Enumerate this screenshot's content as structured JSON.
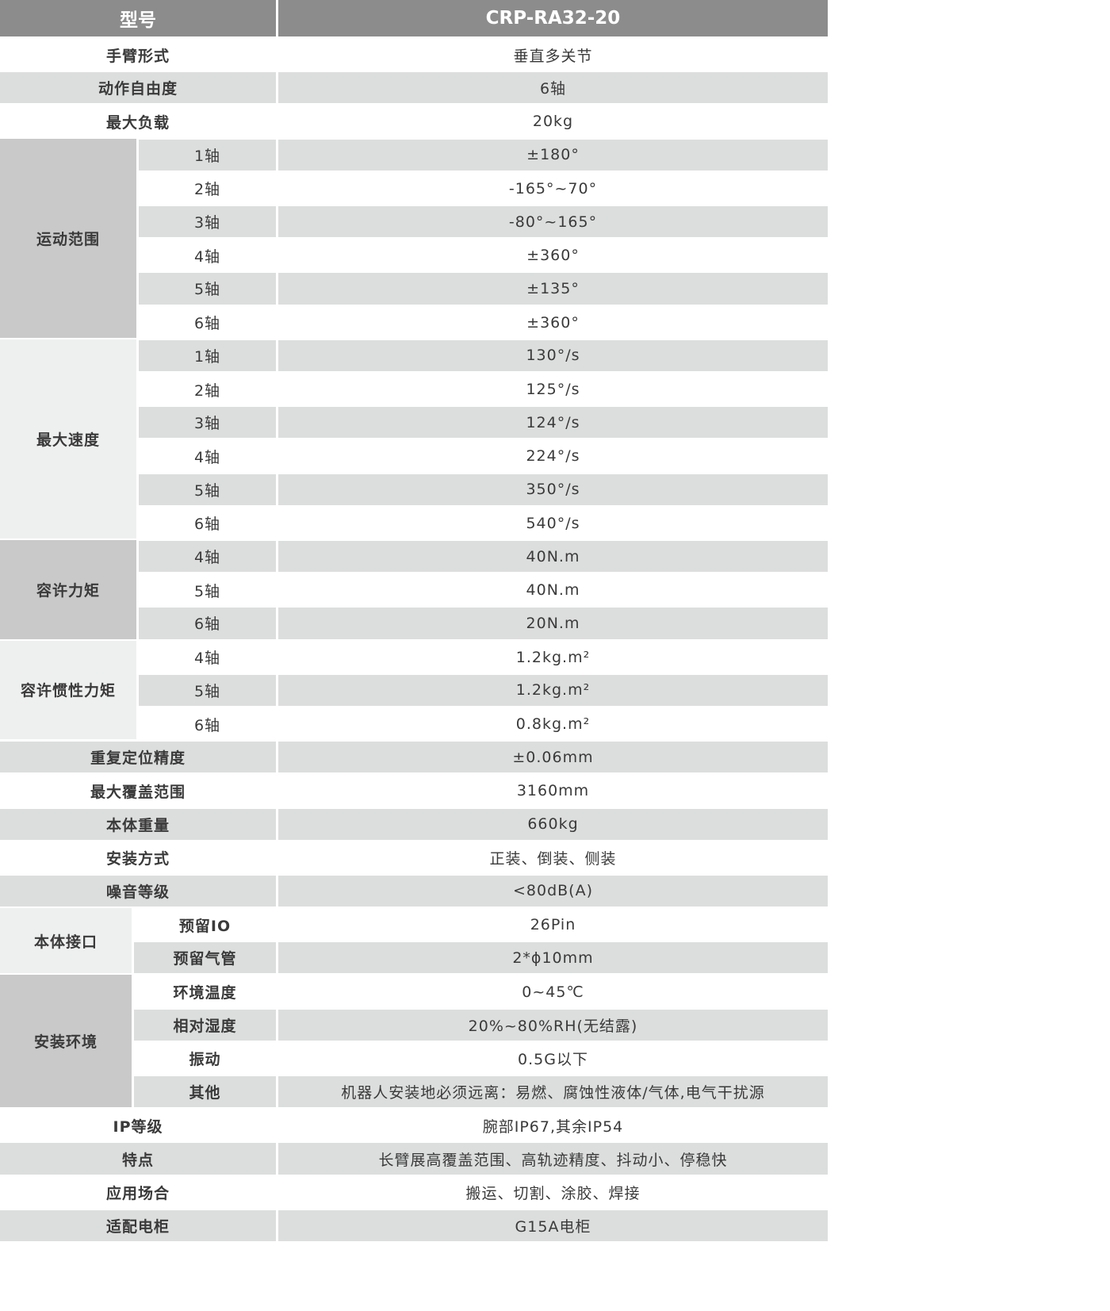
{
  "header": {
    "label": "型号",
    "model": "CRP-RA32-20"
  },
  "colors": {
    "header_bg": "#8c8c8c",
    "row_alt": "#dcdedd",
    "group_dark": "#c9c9c9",
    "group_light": "#eef0ef"
  },
  "blocks": [
    {
      "label": "手臂形式",
      "value": "垂直多关节"
    },
    {
      "label": "动作自由度",
      "value": "6轴"
    },
    {
      "label": "最大负载",
      "value": "20kg"
    },
    {
      "label": "运动范围",
      "tone": "dark",
      "narrow": false,
      "rows": [
        {
          "sub": "1轴",
          "value": "±180°"
        },
        {
          "sub": "2轴",
          "value": "-165°~70°"
        },
        {
          "sub": "3轴",
          "value": "-80°~165°"
        },
        {
          "sub": "4轴",
          "value": "±360°"
        },
        {
          "sub": "5轴",
          "value": "±135°"
        },
        {
          "sub": "6轴",
          "value": "±360°"
        }
      ]
    },
    {
      "label": "最大速度",
      "tone": "light",
      "narrow": false,
      "rows": [
        {
          "sub": "1轴",
          "value": "130°/s"
        },
        {
          "sub": "2轴",
          "value": "125°/s"
        },
        {
          "sub": "3轴",
          "value": "124°/s"
        },
        {
          "sub": "4轴",
          "value": "224°/s"
        },
        {
          "sub": "5轴",
          "value": "350°/s"
        },
        {
          "sub": "6轴",
          "value": "540°/s"
        }
      ]
    },
    {
      "label": "容许力矩",
      "tone": "dark",
      "narrow": false,
      "rows": [
        {
          "sub": "4轴",
          "value": "40N.m"
        },
        {
          "sub": "5轴",
          "value": "40N.m"
        },
        {
          "sub": "6轴",
          "value": "20N.m"
        }
      ]
    },
    {
      "label": "容许惯性力矩",
      "tone": "light",
      "narrow": false,
      "rows": [
        {
          "sub": "4轴",
          "value": "1.2kg.m²"
        },
        {
          "sub": "5轴",
          "value": "1.2kg.m²"
        },
        {
          "sub": "6轴",
          "value": "0.8kg.m²"
        }
      ]
    },
    {
      "label": "重复定位精度",
      "value": "±0.06mm"
    },
    {
      "label": "最大覆盖范围",
      "value": "3160mm"
    },
    {
      "label": "本体重量",
      "value": "660kg"
    },
    {
      "label": "安装方式",
      "value": "正装、倒装、侧装"
    },
    {
      "label": "噪音等级",
      "value": "<80dB(A)"
    },
    {
      "label": "本体接口",
      "tone": "light",
      "narrow": true,
      "rows": [
        {
          "sub": "预留IO",
          "value": "26Pin"
        },
        {
          "sub": "预留气管",
          "value": "2*ϕ10mm"
        }
      ]
    },
    {
      "label": "安装环境",
      "tone": "dark",
      "narrow": true,
      "rows": [
        {
          "sub": "环境温度",
          "value": "0~45℃"
        },
        {
          "sub": "相对湿度",
          "value": "20%~80%RH(无结露)"
        },
        {
          "sub": "振动",
          "value": "0.5G以下"
        },
        {
          "sub": "其他",
          "value": "机器人安装地必须远离：易燃、腐蚀性液体/气体,电气干扰源"
        }
      ]
    },
    {
      "label": "IP等级",
      "value": "腕部IP67,其余IP54"
    },
    {
      "label": "特点",
      "value": "长臂展高覆盖范围、高轨迹精度、抖动小、停稳快"
    },
    {
      "label": "应用场合",
      "value": "搬运、切割、涂胶、焊接"
    },
    {
      "label": "适配电柜",
      "value": "G15A电柜"
    }
  ]
}
